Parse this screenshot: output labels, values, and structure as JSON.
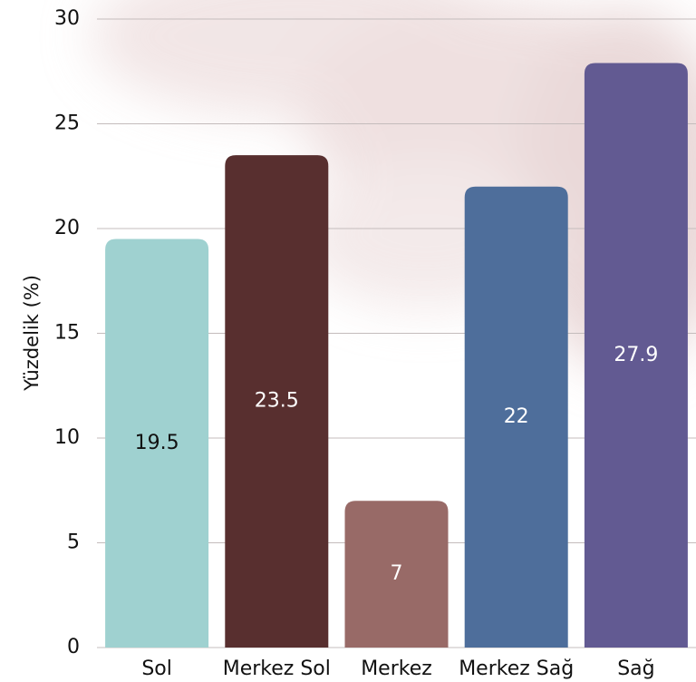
{
  "chart_data": {
    "type": "bar",
    "title": "",
    "xlabel": "",
    "ylabel": "Yüzdelik (%)",
    "ylim": [
      0,
      30
    ],
    "yticks": [
      0,
      5,
      10,
      15,
      20,
      25,
      30
    ],
    "grid": true,
    "categories": [
      "Sol",
      "Merkez Sol",
      "Merkez",
      "Merkez Sağ",
      "Sağ"
    ],
    "values": [
      19.5,
      23.5,
      7,
      22,
      27.9
    ],
    "value_labels": [
      "19.5",
      "23.5",
      "7",
      "22",
      "27.9"
    ],
    "bar_colors": [
      "#9fd1d0",
      "#582f2f",
      "#986a67",
      "#4e6e9b",
      "#625a92"
    ],
    "value_label_colors": [
      "#111111",
      "#ffffff",
      "#ffffff",
      "#ffffff",
      "#ffffff"
    ]
  }
}
